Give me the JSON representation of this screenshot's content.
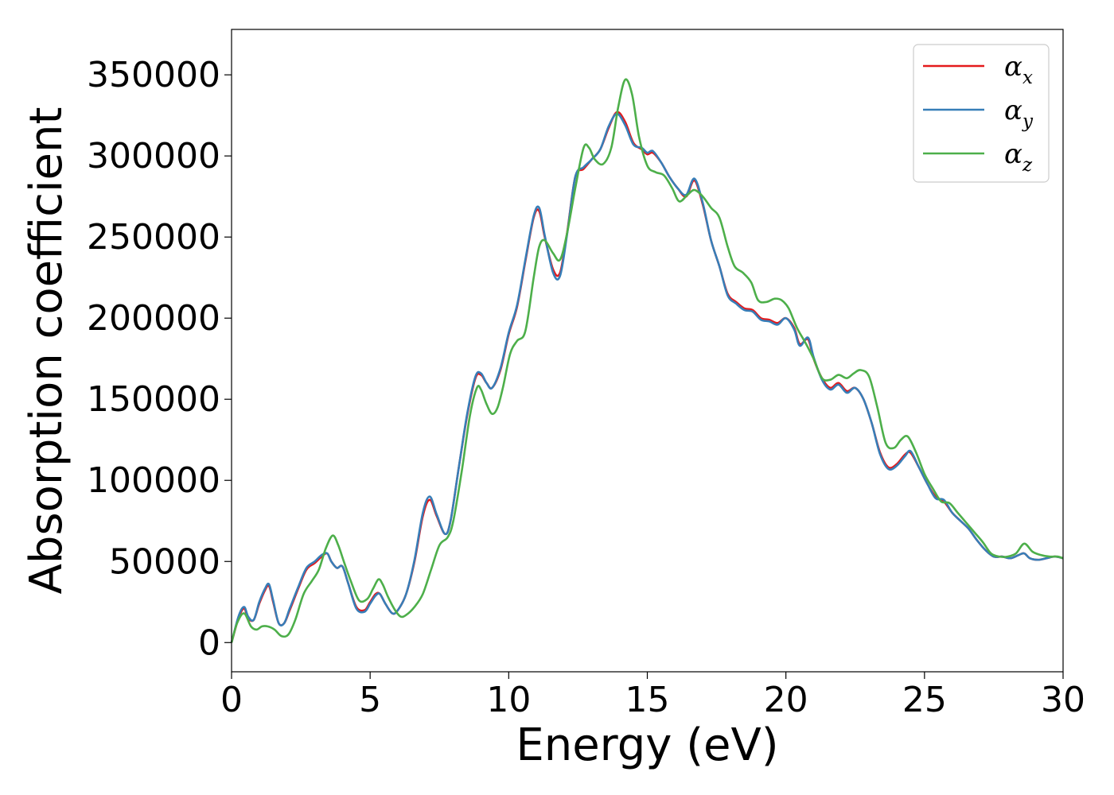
{
  "chart_data": {
    "type": "line",
    "title": "",
    "xlabel": "Energy (eV)",
    "ylabel": "Absorption coefficient",
    "xlim": [
      0,
      30
    ],
    "ylim": [
      -18000,
      378000
    ],
    "x_ticks": [
      0,
      5,
      10,
      15,
      20,
      25,
      30
    ],
    "y_ticks": [
      0,
      50000,
      100000,
      150000,
      200000,
      250000,
      300000,
      350000
    ],
    "grid": false,
    "legend_position": "top-right",
    "series": [
      {
        "name": "αx",
        "legend_symbol": "α",
        "legend_sub": "x",
        "color": "#e41a1c",
        "x": [
          0,
          0.25,
          0.45,
          0.6,
          0.8,
          1.0,
          1.2,
          1.35,
          1.5,
          1.7,
          1.9,
          2.1,
          2.4,
          2.7,
          3.0,
          3.25,
          3.45,
          3.6,
          3.8,
          4.0,
          4.2,
          4.5,
          4.8,
          5.0,
          5.2,
          5.35,
          5.55,
          5.8,
          6.0,
          6.3,
          6.6,
          6.9,
          7.15,
          7.4,
          7.7,
          7.9,
          8.2,
          8.5,
          8.8,
          9.0,
          9.2,
          9.4,
          9.7,
          10.0,
          10.3,
          10.6,
          10.9,
          11.1,
          11.3,
          11.6,
          11.85,
          12.1,
          12.4,
          12.7,
          13.0,
          13.3,
          13.6,
          13.9,
          14.2,
          14.5,
          14.8,
          15.0,
          15.2,
          15.5,
          15.8,
          16.1,
          16.4,
          16.7,
          17.0,
          17.3,
          17.6,
          17.9,
          18.2,
          18.5,
          18.8,
          19.1,
          19.4,
          19.7,
          20.0,
          20.3,
          20.5,
          20.8,
          21.0,
          21.3,
          21.6,
          21.9,
          22.2,
          22.5,
          22.8,
          23.1,
          23.4,
          23.7,
          24.0,
          24.3,
          24.5,
          24.8,
          25.1,
          25.4,
          25.7,
          26.0,
          26.3,
          26.6,
          26.9,
          27.2,
          27.5,
          27.8,
          28.1,
          28.4,
          28.6,
          28.8,
          29.1,
          29.4,
          29.7,
          30.0
        ],
        "values": [
          0,
          15000,
          21000,
          15000,
          14000,
          24000,
          32000,
          35000,
          25000,
          12000,
          12000,
          20000,
          33000,
          45000,
          49000,
          53000,
          55000,
          50000,
          46000,
          47000,
          37000,
          22000,
          20000,
          25000,
          30000,
          30000,
          24000,
          18000,
          20000,
          30000,
          50000,
          78000,
          88000,
          78000,
          67000,
          75000,
          108000,
          140000,
          163000,
          165000,
          160000,
          157000,
          168000,
          190000,
          207000,
          235000,
          262000,
          266000,
          250000,
          230000,
          228000,
          252000,
          287000,
          292000,
          298000,
          304000,
          317000,
          327000,
          321000,
          308000,
          304000,
          301000,
          302000,
          296000,
          287000,
          280000,
          275000,
          285000,
          270000,
          248000,
          232000,
          215000,
          210000,
          206000,
          205000,
          200000,
          199000,
          197000,
          200000,
          194000,
          184000,
          187000,
          175000,
          163000,
          157000,
          160000,
          155000,
          157000,
          150000,
          135000,
          117000,
          108000,
          110000,
          116000,
          117000,
          108000,
          98000,
          90000,
          87000,
          80000,
          75000,
          70000,
          63000,
          57000,
          53000,
          53000,
          52000,
          54000,
          55000,
          52000,
          51000,
          52000,
          53000,
          52000
        ]
      },
      {
        "name": "αy",
        "legend_symbol": "α",
        "legend_sub": "y",
        "color": "#377eb8",
        "x": [
          0,
          0.25,
          0.45,
          0.6,
          0.8,
          1.0,
          1.2,
          1.35,
          1.5,
          1.7,
          1.9,
          2.1,
          2.4,
          2.7,
          3.0,
          3.25,
          3.45,
          3.6,
          3.8,
          4.0,
          4.2,
          4.5,
          4.8,
          5.0,
          5.2,
          5.35,
          5.55,
          5.8,
          6.0,
          6.3,
          6.6,
          6.9,
          7.15,
          7.4,
          7.7,
          7.9,
          8.2,
          8.5,
          8.8,
          9.0,
          9.2,
          9.4,
          9.7,
          10.0,
          10.3,
          10.6,
          10.9,
          11.1,
          11.3,
          11.6,
          11.85,
          12.1,
          12.4,
          12.7,
          13.0,
          13.3,
          13.6,
          13.9,
          14.2,
          14.5,
          14.8,
          15.0,
          15.2,
          15.5,
          15.8,
          16.1,
          16.4,
          16.7,
          17.0,
          17.3,
          17.6,
          17.9,
          18.2,
          18.5,
          18.8,
          19.1,
          19.4,
          19.7,
          20.0,
          20.3,
          20.5,
          20.8,
          21.0,
          21.3,
          21.6,
          21.9,
          22.2,
          22.5,
          22.8,
          23.1,
          23.4,
          23.7,
          24.0,
          24.3,
          24.5,
          24.8,
          25.1,
          25.4,
          25.7,
          26.0,
          26.3,
          26.6,
          26.9,
          27.2,
          27.5,
          27.8,
          28.1,
          28.4,
          28.6,
          28.8,
          29.1,
          29.4,
          29.7,
          30.0
        ],
        "values": [
          0,
          16000,
          22000,
          16000,
          14000,
          25000,
          33000,
          36000,
          26000,
          12000,
          12000,
          21000,
          34000,
          46000,
          50000,
          54000,
          55000,
          50000,
          46000,
          47000,
          37000,
          21000,
          19000,
          24000,
          29000,
          30000,
          24000,
          18000,
          20000,
          30000,
          51000,
          80000,
          90000,
          79000,
          67000,
          75000,
          108000,
          141000,
          164000,
          166000,
          160000,
          157000,
          169000,
          191000,
          208000,
          236000,
          263000,
          268000,
          251000,
          228000,
          226000,
          251000,
          287000,
          293000,
          298000,
          304000,
          318000,
          326000,
          319000,
          307000,
          305000,
          302000,
          303000,
          296000,
          287000,
          280000,
          276000,
          286000,
          271000,
          248000,
          232000,
          214000,
          209000,
          205000,
          204000,
          199000,
          198000,
          196000,
          200000,
          193000,
          183000,
          188000,
          176000,
          162000,
          156000,
          159000,
          154000,
          157000,
          150000,
          135000,
          116000,
          107000,
          109000,
          115000,
          118000,
          108000,
          98000,
          89000,
          88000,
          80000,
          75000,
          70000,
          63000,
          57000,
          53000,
          53000,
          52000,
          54000,
          55000,
          52000,
          51000,
          52000,
          53000,
          52000
        ]
      },
      {
        "name": "αz",
        "legend_symbol": "α",
        "legend_sub": "z",
        "color": "#4daf4a",
        "x": [
          0,
          0.2,
          0.45,
          0.7,
          0.9,
          1.1,
          1.3,
          1.55,
          1.8,
          2.05,
          2.3,
          2.6,
          2.9,
          3.15,
          3.4,
          3.65,
          3.85,
          4.05,
          4.3,
          4.6,
          4.9,
          5.1,
          5.3,
          5.45,
          5.65,
          5.9,
          6.1,
          6.3,
          6.6,
          6.9,
          7.2,
          7.5,
          7.8,
          8.0,
          8.3,
          8.6,
          8.85,
          9.0,
          9.2,
          9.4,
          9.6,
          9.8,
          10.05,
          10.3,
          10.6,
          10.9,
          11.1,
          11.3,
          11.6,
          11.85,
          12.1,
          12.4,
          12.7,
          12.9,
          13.1,
          13.4,
          13.7,
          13.95,
          14.2,
          14.45,
          14.7,
          15.0,
          15.3,
          15.6,
          15.9,
          16.15,
          16.45,
          16.7,
          17.0,
          17.3,
          17.6,
          17.9,
          18.15,
          18.45,
          18.75,
          19.0,
          19.3,
          19.6,
          19.85,
          20.1,
          20.4,
          20.7,
          21.0,
          21.3,
          21.6,
          21.9,
          22.2,
          22.45,
          22.7,
          23.0,
          23.3,
          23.6,
          23.9,
          24.15,
          24.4,
          24.7,
          25.0,
          25.3,
          25.6,
          25.9,
          26.2,
          26.5,
          26.8,
          27.1,
          27.4,
          27.7,
          28.0,
          28.3,
          28.6,
          28.9,
          29.2,
          29.5,
          29.8,
          30.0
        ],
        "values": [
          0,
          12000,
          18000,
          10000,
          8000,
          10000,
          10000,
          8000,
          4000,
          5000,
          14000,
          30000,
          38000,
          45000,
          58000,
          66000,
          60000,
          50000,
          38000,
          26000,
          27000,
          33000,
          39000,
          36000,
          28000,
          20000,
          16000,
          17000,
          22000,
          30000,
          45000,
          60000,
          65000,
          75000,
          105000,
          140000,
          157000,
          156000,
          147000,
          141000,
          145000,
          158000,
          178000,
          186000,
          192000,
          225000,
          244000,
          248000,
          240000,
          236000,
          252000,
          280000,
          305000,
          305000,
          298000,
          295000,
          305000,
          330000,
          347000,
          338000,
          312000,
          294000,
          290000,
          288000,
          280000,
          272000,
          276000,
          279000,
          275000,
          268000,
          262000,
          244000,
          232000,
          228000,
          222000,
          211000,
          210000,
          212000,
          211000,
          206000,
          194000,
          185000,
          175000,
          163000,
          162000,
          165000,
          163000,
          166000,
          168000,
          164000,
          145000,
          123000,
          120000,
          125000,
          127000,
          117000,
          104000,
          95000,
          87000,
          86000,
          80000,
          74000,
          68000,
          62000,
          55000,
          53000,
          53000,
          55000,
          61000,
          56000,
          54000,
          53000,
          53000,
          52000
        ]
      }
    ]
  }
}
